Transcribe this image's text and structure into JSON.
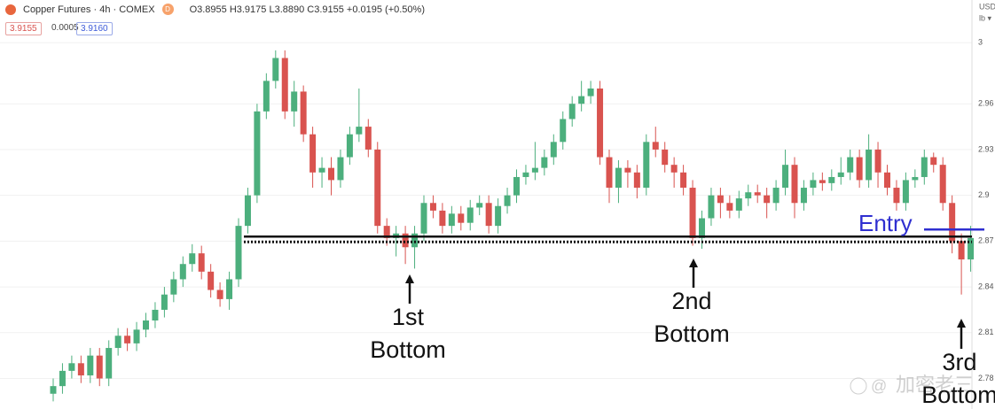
{
  "header": {
    "symbol": "Copper Futures · 4h · COMEX",
    "badge": "D",
    "ohlc": "O3.8955 H3.9175 L3.8890 C3.9155 +0.0195 (+0.50%)",
    "bid": "3.9155",
    "spread": "0.0005",
    "ask": "3.9160",
    "currency": "USD",
    "unit": "lb ▾"
  },
  "watermark": "加密老三",
  "chart_data": {
    "type": "candlestick",
    "up_color": "#4caf7d",
    "down_color": "#d9534f",
    "ylim": [
      2.76,
      3.028
    ],
    "yticks": [
      3.0,
      2.96,
      2.93,
      2.9,
      2.87,
      2.84,
      2.81,
      2.78
    ],
    "grid": true,
    "open": [
      2.77,
      2.775,
      2.785,
      2.79,
      2.782,
      2.795,
      2.78,
      2.8,
      2.808,
      2.803,
      2.812,
      2.818,
      2.825,
      2.835,
      2.845,
      2.855,
      2.862,
      2.85,
      2.838,
      2.832,
      2.845,
      2.88,
      2.9,
      2.955,
      2.975,
      2.99,
      2.955,
      2.968,
      2.94,
      2.915,
      2.918,
      2.91,
      2.925,
      2.94,
      2.945,
      2.93,
      2.88,
      2.872,
      2.875,
      2.866,
      2.875,
      2.895,
      2.89,
      2.88,
      2.888,
      2.882,
      2.892,
      2.895,
      2.88,
      2.893,
      2.9,
      2.912,
      2.915,
      2.918,
      2.925,
      2.935,
      2.95,
      2.96,
      2.965,
      2.97,
      2.925,
      2.905,
      2.918,
      2.915,
      2.905,
      2.935,
      2.93,
      2.92,
      2.915,
      2.905,
      2.872,
      2.885,
      2.9,
      2.895,
      2.89,
      2.898,
      2.902,
      2.9,
      2.895,
      2.905,
      2.92,
      2.895,
      2.905,
      2.91,
      2.908,
      2.912,
      2.915,
      2.925,
      2.91,
      2.93,
      2.915,
      2.905,
      2.895,
      2.91,
      2.912,
      2.925,
      2.92,
      2.895,
      2.87,
      2.858
    ],
    "high": [
      2.78,
      2.79,
      2.795,
      2.795,
      2.8,
      2.8,
      2.805,
      2.813,
      2.813,
      2.817,
      2.823,
      2.83,
      2.84,
      2.85,
      2.86,
      2.868,
      2.867,
      2.855,
      2.843,
      2.85,
      2.885,
      2.905,
      2.96,
      2.98,
      2.995,
      2.995,
      2.975,
      2.972,
      2.945,
      2.925,
      2.925,
      2.93,
      2.945,
      2.97,
      2.95,
      2.935,
      2.885,
      2.88,
      2.88,
      2.88,
      2.9,
      2.9,
      2.895,
      2.893,
      2.893,
      2.897,
      2.9,
      2.9,
      2.898,
      2.905,
      2.917,
      2.92,
      2.935,
      2.93,
      2.94,
      2.955,
      2.965,
      2.975,
      2.975,
      2.975,
      2.93,
      2.923,
      2.923,
      2.92,
      2.94,
      2.945,
      2.935,
      2.925,
      2.92,
      2.91,
      2.89,
      2.905,
      2.905,
      2.9,
      2.903,
      2.907,
      2.907,
      2.905,
      2.91,
      2.93,
      2.925,
      2.91,
      2.915,
      2.915,
      2.917,
      2.925,
      2.93,
      2.93,
      2.94,
      2.935,
      2.92,
      2.91,
      2.915,
      2.917,
      2.93,
      2.928,
      2.925,
      2.9,
      2.875,
      2.88
    ],
    "low": [
      2.765,
      2.77,
      2.78,
      2.777,
      2.777,
      2.775,
      2.775,
      2.795,
      2.798,
      2.798,
      2.807,
      2.813,
      2.82,
      2.83,
      2.84,
      2.85,
      2.845,
      2.833,
      2.827,
      2.825,
      2.84,
      2.875,
      2.895,
      2.95,
      2.97,
      2.95,
      2.945,
      2.935,
      2.905,
      2.905,
      2.9,
      2.905,
      2.92,
      2.935,
      2.925,
      2.875,
      2.867,
      2.86,
      2.855,
      2.852,
      2.87,
      2.885,
      2.875,
      2.875,
      2.877,
      2.877,
      2.887,
      2.875,
      2.875,
      2.888,
      2.895,
      2.907,
      2.91,
      2.913,
      2.92,
      2.93,
      2.945,
      2.955,
      2.96,
      2.92,
      2.895,
      2.895,
      2.905,
      2.898,
      2.9,
      2.925,
      2.915,
      2.905,
      2.9,
      2.867,
      2.865,
      2.88,
      2.885,
      2.885,
      2.885,
      2.893,
      2.895,
      2.885,
      2.89,
      2.9,
      2.885,
      2.89,
      2.9,
      2.903,
      2.903,
      2.907,
      2.91,
      2.905,
      2.905,
      2.905,
      2.9,
      2.89,
      2.89,
      2.905,
      2.907,
      2.915,
      2.89,
      2.862,
      2.835,
      2.85
    ],
    "close": [
      2.775,
      2.785,
      2.79,
      2.782,
      2.795,
      2.78,
      2.8,
      2.808,
      2.803,
      2.812,
      2.818,
      2.825,
      2.835,
      2.845,
      2.855,
      2.862,
      2.85,
      2.838,
      2.832,
      2.845,
      2.88,
      2.9,
      2.955,
      2.975,
      2.99,
      2.955,
      2.968,
      2.94,
      2.915,
      2.918,
      2.91,
      2.925,
      2.94,
      2.945,
      2.93,
      2.88,
      2.872,
      2.875,
      2.866,
      2.875,
      2.895,
      2.89,
      2.88,
      2.888,
      2.882,
      2.892,
      2.895,
      2.88,
      2.893,
      2.9,
      2.912,
      2.915,
      2.918,
      2.925,
      2.935,
      2.95,
      2.96,
      2.965,
      2.97,
      2.925,
      2.905,
      2.918,
      2.915,
      2.905,
      2.935,
      2.93,
      2.92,
      2.915,
      2.905,
      2.872,
      2.885,
      2.9,
      2.895,
      2.89,
      2.898,
      2.902,
      2.9,
      2.895,
      2.905,
      2.92,
      2.895,
      2.905,
      2.91,
      2.908,
      2.912,
      2.915,
      2.925,
      2.91,
      2.93,
      2.915,
      2.905,
      2.895,
      2.91,
      2.912,
      2.925,
      2.92,
      2.895,
      2.87,
      2.858,
      2.872
    ],
    "level": 2.873,
    "entry_label": "Entry",
    "annotations": [
      [
        "1st",
        "Bottom"
      ],
      [
        "2nd",
        "Bottom"
      ],
      [
        "3rd",
        "Bottom"
      ]
    ]
  }
}
